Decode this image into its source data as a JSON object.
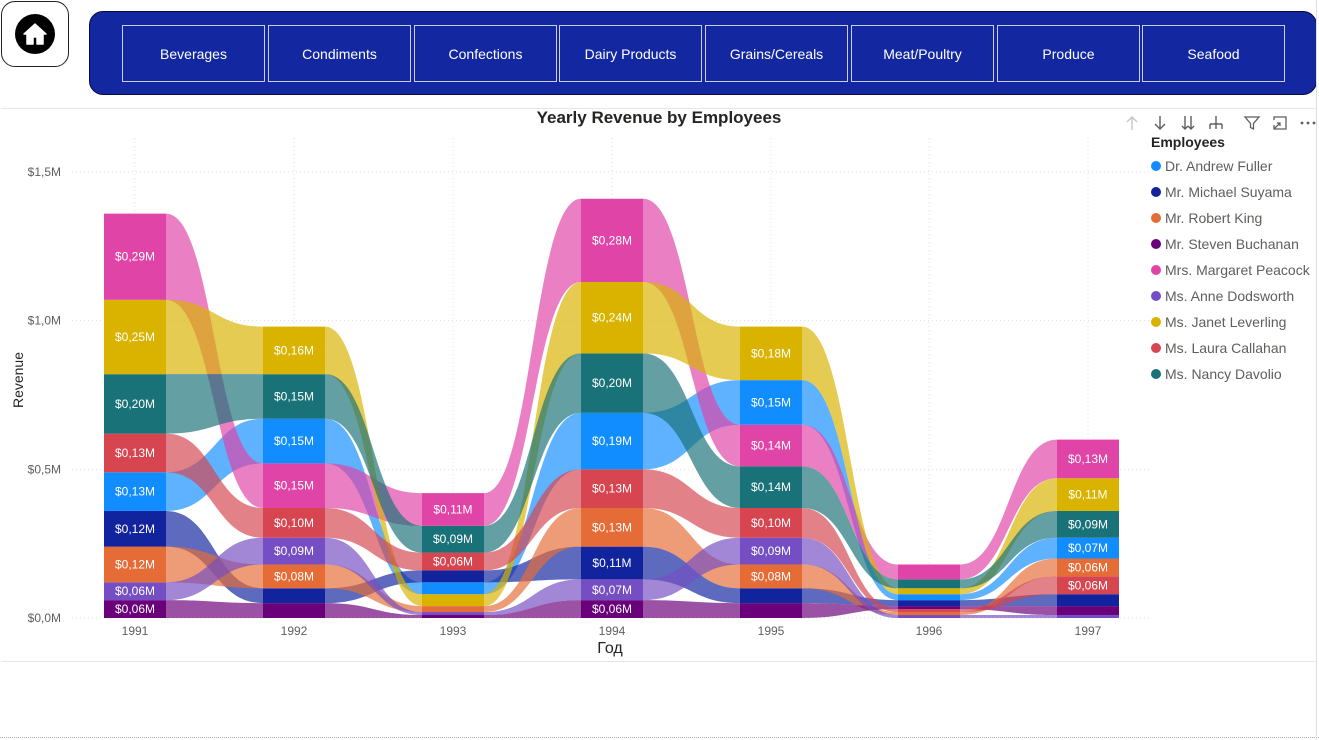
{
  "nav": {
    "home_icon": "home-icon",
    "categories": [
      "Beverages",
      "Condiments",
      "Confections",
      "Dairy Products",
      "Grains/Cereals",
      "Meat/Poultry",
      "Produce",
      "Seafood"
    ]
  },
  "toolbar": {
    "icons": [
      "drill-up-icon",
      "drill-down-icon",
      "expand-all-down-icon",
      "expand-hierarchy-icon",
      "filter-icon",
      "focus-mode-icon",
      "more-options-icon"
    ]
  },
  "colors": {
    "nav_bg": "#1328a0",
    "Dr. Andrew Fuller": "#118dff",
    "Mr. Michael Suyama": "#12239e",
    "Mr. Robert King": "#e66c37",
    "Mr. Steven Buchanan": "#6b007b",
    "Mrs. Margaret Peacock": "#e044a7",
    "Ms. Anne Dodsworth": "#744ec2",
    "Ms. Janet Leverling": "#d9b300",
    "Ms. Laura Callahan": "#d64550",
    "Ms. Nancy Davolio": "#197278"
  },
  "chart_data": {
    "type": "ribbon",
    "title": "Yearly Revenue by Employees",
    "xlabel": "Год",
    "ylabel": "Revenue",
    "ylim": [
      0,
      1.5
    ],
    "y_ticks": [
      "$0,0M",
      "$0,5M",
      "$1,0M",
      "$1,5M"
    ],
    "grid": true,
    "legend": {
      "title": "Employees",
      "position": "right"
    },
    "categories": [
      "1991",
      "1992",
      "1993",
      "1994",
      "1995",
      "1996",
      "1997"
    ],
    "series": [
      {
        "name": "Dr. Andrew Fuller",
        "values": [
          0.13,
          0.15,
          0.04,
          0.19,
          0.15,
          0.02,
          0.07
        ]
      },
      {
        "name": "Mr. Michael Suyama",
        "values": [
          0.12,
          0.05,
          0.04,
          0.11,
          0.05,
          0.02,
          0.04
        ]
      },
      {
        "name": "Mr. Robert King",
        "values": [
          0.12,
          0.08,
          0.02,
          0.13,
          0.08,
          0.01,
          0.06
        ]
      },
      {
        "name": "Mr. Steven Buchanan",
        "values": [
          0.06,
          0.05,
          0.01,
          0.06,
          0.05,
          0.01,
          0.03
        ]
      },
      {
        "name": "Mrs. Margaret Peacock",
        "values": [
          0.29,
          0.15,
          0.11,
          0.28,
          0.14,
          0.05,
          0.13
        ]
      },
      {
        "name": "Ms. Anne Dodsworth",
        "values": [
          0.06,
          0.09,
          0.01,
          0.07,
          0.09,
          0.01,
          0.01
        ]
      },
      {
        "name": "Ms. Janet Leverling",
        "values": [
          0.25,
          0.16,
          0.04,
          0.24,
          0.18,
          0.02,
          0.11
        ]
      },
      {
        "name": "Ms. Laura Callahan",
        "values": [
          0.13,
          0.1,
          0.06,
          0.13,
          0.1,
          0.01,
          0.06
        ]
      },
      {
        "name": "Ms. Nancy Davolio",
        "values": [
          0.2,
          0.15,
          0.09,
          0.2,
          0.14,
          0.03,
          0.09
        ]
      }
    ],
    "stack_order_bottom_to_top": [
      [
        "Mr. Steven Buchanan",
        "Ms. Anne Dodsworth",
        "Mr. Robert King",
        "Mr. Michael Suyama",
        "Dr. Andrew Fuller",
        "Ms. Laura Callahan",
        "Ms. Nancy Davolio",
        "Ms. Janet Leverling",
        "Mrs. Margaret Peacock"
      ],
      [
        "Mr. Steven Buchanan",
        "Mr. Michael Suyama",
        "Mr. Robert King",
        "Ms. Anne Dodsworth",
        "Ms. Laura Callahan",
        "Mrs. Margaret Peacock",
        "Dr. Andrew Fuller",
        "Ms. Nancy Davolio",
        "Ms. Janet Leverling"
      ],
      [
        "Mr. Steven Buchanan",
        "Ms. Anne Dodsworth",
        "Mr. Robert King",
        "Ms. Janet Leverling",
        "Dr. Andrew Fuller",
        "Mr. Michael Suyama",
        "Ms. Laura Callahan",
        "Ms. Nancy Davolio",
        "Mrs. Margaret Peacock"
      ],
      [
        "Mr. Steven Buchanan",
        "Ms. Anne Dodsworth",
        "Mr. Michael Suyama",
        "Mr. Robert King",
        "Ms. Laura Callahan",
        "Dr. Andrew Fuller",
        "Ms. Nancy Davolio",
        "Ms. Janet Leverling",
        "Mrs. Margaret Peacock"
      ],
      [
        "Mr. Steven Buchanan",
        "Mr. Michael Suyama",
        "Mr. Robert King",
        "Ms. Anne Dodsworth",
        "Ms. Laura Callahan",
        "Ms. Nancy Davolio",
        "Mrs. Margaret Peacock",
        "Dr. Andrew Fuller",
        "Ms. Janet Leverling"
      ],
      [
        "Ms. Anne Dodsworth",
        "Mr. Robert King",
        "Ms. Laura Callahan",
        "Mr. Steven Buchanan",
        "Mr. Michael Suyama",
        "Dr. Andrew Fuller",
        "Ms. Janet Leverling",
        "Ms. Nancy Davolio",
        "Mrs. Margaret Peacock"
      ],
      [
        "Ms. Anne Dodsworth",
        "Mr. Steven Buchanan",
        "Mr. Michael Suyama",
        "Ms. Laura Callahan",
        "Mr. Robert King",
        "Dr. Andrew Fuller",
        "Ms. Nancy Davolio",
        "Ms. Janet Leverling",
        "Mrs. Margaret Peacock"
      ]
    ],
    "data_labels": [
      {
        "x": "1991",
        "series": "Mrs. Margaret Peacock",
        "text": "$0,29M"
      },
      {
        "x": "1991",
        "series": "Ms. Janet Leverling",
        "text": "$0,25M"
      },
      {
        "x": "1991",
        "series": "Ms. Nancy Davolio",
        "text": "$0,20M"
      },
      {
        "x": "1991",
        "series": "Ms. Laura Callahan",
        "text": "$0,13M"
      },
      {
        "x": "1991",
        "series": "Dr. Andrew Fuller",
        "text": "$0,13M"
      },
      {
        "x": "1991",
        "series": "Mr. Michael Suyama",
        "text": "$0,12M"
      },
      {
        "x": "1991",
        "series": "Mr. Robert King",
        "text": "$0,12M"
      },
      {
        "x": "1991",
        "series": "Ms. Anne Dodsworth",
        "text": "$0,06M"
      },
      {
        "x": "1991",
        "series": "Mr. Steven Buchanan",
        "text": "$0,06M"
      },
      {
        "x": "1992",
        "series": "Ms. Janet Leverling",
        "text": "$0,16M"
      },
      {
        "x": "1992",
        "series": "Ms. Nancy Davolio",
        "text": "$0,15M"
      },
      {
        "x": "1992",
        "series": "Dr. Andrew Fuller",
        "text": "$0,15M"
      },
      {
        "x": "1992",
        "series": "Mrs. Margaret Peacock",
        "text": "$0,15M"
      },
      {
        "x": "1992",
        "series": "Ms. Laura Callahan",
        "text": "$0,10M"
      },
      {
        "x": "1992",
        "series": "Ms. Anne Dodsworth",
        "text": "$0,09M"
      },
      {
        "x": "1992",
        "series": "Mr. Robert King",
        "text": "$0,08M"
      },
      {
        "x": "1993",
        "series": "Mrs. Margaret Peacock",
        "text": "$0,11M"
      },
      {
        "x": "1993",
        "series": "Ms. Nancy Davolio",
        "text": "$0,09M"
      },
      {
        "x": "1993",
        "series": "Ms. Laura Callahan",
        "text": "$0,06M"
      },
      {
        "x": "1994",
        "series": "Mrs. Margaret Peacock",
        "text": "$0,28M"
      },
      {
        "x": "1994",
        "series": "Ms. Janet Leverling",
        "text": "$0,24M"
      },
      {
        "x": "1994",
        "series": "Ms. Nancy Davolio",
        "text": "$0,20M"
      },
      {
        "x": "1994",
        "series": "Dr. Andrew Fuller",
        "text": "$0,19M"
      },
      {
        "x": "1994",
        "series": "Ms. Laura Callahan",
        "text": "$0,13M"
      },
      {
        "x": "1994",
        "series": "Mr. Robert King",
        "text": "$0,13M"
      },
      {
        "x": "1994",
        "series": "Mr. Michael Suyama",
        "text": "$0,11M"
      },
      {
        "x": "1994",
        "series": "Ms. Anne Dodsworth",
        "text": "$0,07M"
      },
      {
        "x": "1994",
        "series": "Mr. Steven Buchanan",
        "text": "$0,06M"
      },
      {
        "x": "1995",
        "series": "Ms. Janet Leverling",
        "text": "$0,18M"
      },
      {
        "x": "1995",
        "series": "Dr. Andrew Fuller",
        "text": "$0,15M"
      },
      {
        "x": "1995",
        "series": "Mrs. Margaret Peacock",
        "text": "$0,14M"
      },
      {
        "x": "1995",
        "series": "Ms. Nancy Davolio",
        "text": "$0,14M"
      },
      {
        "x": "1995",
        "series": "Ms. Laura Callahan",
        "text": "$0,10M"
      },
      {
        "x": "1995",
        "series": "Ms. Anne Dodsworth",
        "text": "$0,09M"
      },
      {
        "x": "1995",
        "series": "Mr. Robert King",
        "text": "$0,08M"
      },
      {
        "x": "1997",
        "series": "Mrs. Margaret Peacock",
        "text": "$0,13M"
      },
      {
        "x": "1997",
        "series": "Ms. Janet Leverling",
        "text": "$0,11M"
      },
      {
        "x": "1997",
        "series": "Ms. Nancy Davolio",
        "text": "$0,09M"
      },
      {
        "x": "1997",
        "series": "Dr. Andrew Fuller",
        "text": "$0,07M"
      },
      {
        "x": "1997",
        "series": "Mr. Robert King",
        "text": "$0,06M"
      },
      {
        "x": "1997",
        "series": "Ms. Laura Callahan",
        "text": "$0,06M"
      }
    ]
  }
}
